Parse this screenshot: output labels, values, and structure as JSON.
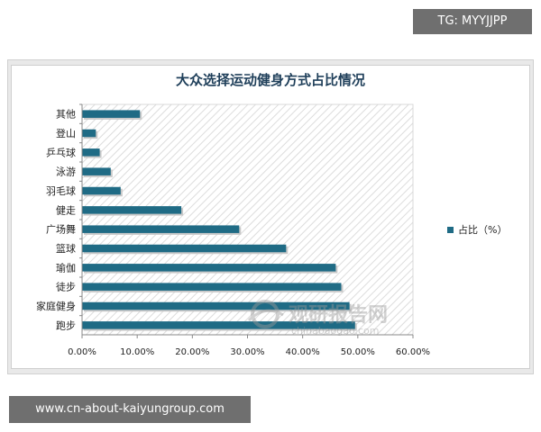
{
  "overlay": {
    "top_tag": "TG: MYYJJPP",
    "bottom_tag": "www.cn-about-kaiyungroup.com"
  },
  "watermark": {
    "name": "观研报告网",
    "url": "chinabaogao.com"
  },
  "colors": {
    "bar": "#1f6b85",
    "bar_shadow": "#c9c9c9",
    "title": "#1f3f5a"
  },
  "chart_data": {
    "type": "bar",
    "orientation": "horizontal",
    "title": "大众选择运动健身方式占比情况",
    "categories": [
      "其他",
      "登山",
      "乒乓球",
      "泳游",
      "羽毛球",
      "健走",
      "广场舞",
      "篮球",
      "瑜伽",
      "徒步",
      "家庭健身",
      "跑步"
    ],
    "series": [
      {
        "name": "占比（%）",
        "values": [
          10.5,
          2.5,
          3.2,
          5.2,
          7.0,
          18.0,
          28.5,
          37.0,
          46.0,
          47.0,
          48.5,
          49.5
        ]
      }
    ],
    "xlim": [
      0,
      60
    ],
    "xticks": [
      "0.00%",
      "10.00%",
      "20.00%",
      "30.00%",
      "40.00%",
      "50.00%",
      "60.00%"
    ],
    "legend_position": "right",
    "grid": false,
    "plot_background": "diagonal-hatch"
  }
}
